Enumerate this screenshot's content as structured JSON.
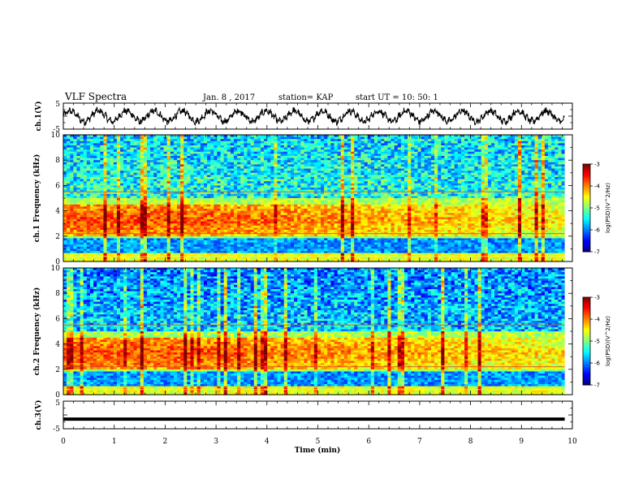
{
  "header": {
    "title": "VLF Spectra",
    "date": "Jan. 8 , 2017",
    "station": "station= KAP",
    "start": "start UT = 10: 50: 1"
  },
  "chart_data": [
    {
      "type": "line",
      "ylabel": "ch.1(V)",
      "ylim": [
        -5,
        5
      ],
      "yticks": [
        "5",
        "-5"
      ],
      "xlim": [
        0,
        10
      ],
      "description_values": {
        "oscillation_amplitude_V": 2,
        "dominant_period_min": 0.55,
        "mean_V": 0
      }
    },
    {
      "type": "heatmap",
      "ylabel": "ch.1 Frequency (kHz)",
      "ylim": [
        0,
        10
      ],
      "yticks": [
        "0",
        "2",
        "4",
        "6",
        "8",
        "10"
      ],
      "xlim": [
        0,
        10
      ],
      "data_end_min": 9.85,
      "colorbar": {
        "label": "log(PSD)(V^2/Hz)",
        "range": [
          -7,
          -3
        ],
        "ticks": [
          "-3",
          "-4",
          "-5",
          "-6",
          "-7"
        ]
      },
      "bands": [
        {
          "freq_kHz": [
            0,
            0.6
          ],
          "log_psd": -4.6
        },
        {
          "freq_kHz": [
            0.6,
            1.8
          ],
          "log_psd": -5.9
        },
        {
          "freq_kHz": [
            2.0,
            4.5
          ],
          "log_psd": -3.9
        },
        {
          "freq_kHz": [
            5.0,
            10
          ],
          "log_psd": -5.4
        }
      ]
    },
    {
      "type": "heatmap",
      "ylabel": "ch.2 Frequency (kHz)",
      "ylim": [
        0,
        10
      ],
      "yticks": [
        "0",
        "2",
        "4",
        "6",
        "8",
        "10"
      ],
      "xlim": [
        0,
        10
      ],
      "data_end_min": 9.85,
      "colorbar": {
        "label": "log(PSD)(V^2/Hz)",
        "range": [
          -7,
          -3
        ],
        "ticks": [
          "-3",
          "-4",
          "-5",
          "-6",
          "-7"
        ]
      },
      "bands": [
        {
          "freq_kHz": [
            0,
            0.6
          ],
          "log_psd": -4.6
        },
        {
          "freq_kHz": [
            0.6,
            1.8
          ],
          "log_psd": -5.9
        },
        {
          "freq_kHz": [
            2.0,
            4.5
          ],
          "log_psd": -3.9
        },
        {
          "freq_kHz": [
            5.0,
            10
          ],
          "log_psd": -5.7
        }
      ]
    },
    {
      "type": "line",
      "ylabel": "ch.3(V)",
      "ylim": [
        -5,
        5
      ],
      "yticks": [
        "5",
        "-5"
      ],
      "xlim": [
        0,
        10
      ],
      "xlabel": "Time (min)",
      "xticks": [
        "0",
        "1",
        "2",
        "3",
        "4",
        "5",
        "6",
        "7",
        "8",
        "9",
        "10"
      ],
      "constant_value_V": -1.5
    }
  ]
}
